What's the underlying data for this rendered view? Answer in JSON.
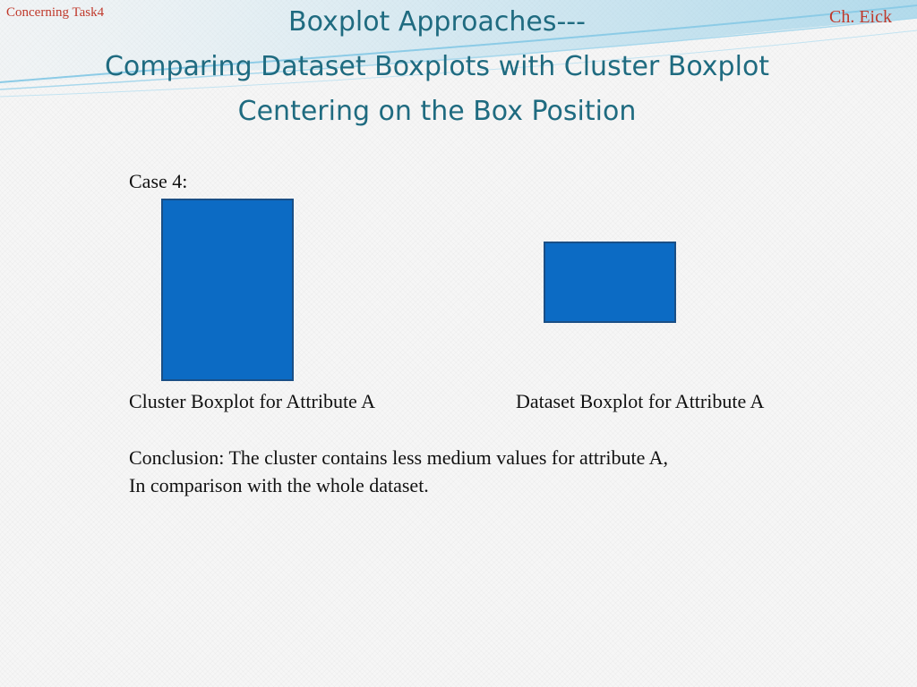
{
  "header": {
    "left_note": "Concerning Task4",
    "right_note": "Ch. Eick",
    "title_lines": [
      "Boxplot Approaches---",
      "Comparing Dataset Boxplots with Cluster Boxplot",
      "Centering on the Box Position"
    ]
  },
  "content": {
    "case_label": "Case 4:",
    "cluster_caption": "Cluster Boxplot for Attribute A",
    "dataset_caption": "Dataset Boxplot for Attribute A",
    "conclusion_lines": [
      "Conclusion: The cluster contains less medium values for attribute A,",
      "In comparison with the whole dataset."
    ]
  },
  "colors": {
    "box_fill": "#0c6bc4",
    "title": "#1f6b80",
    "corner_text": "#c0392b"
  }
}
